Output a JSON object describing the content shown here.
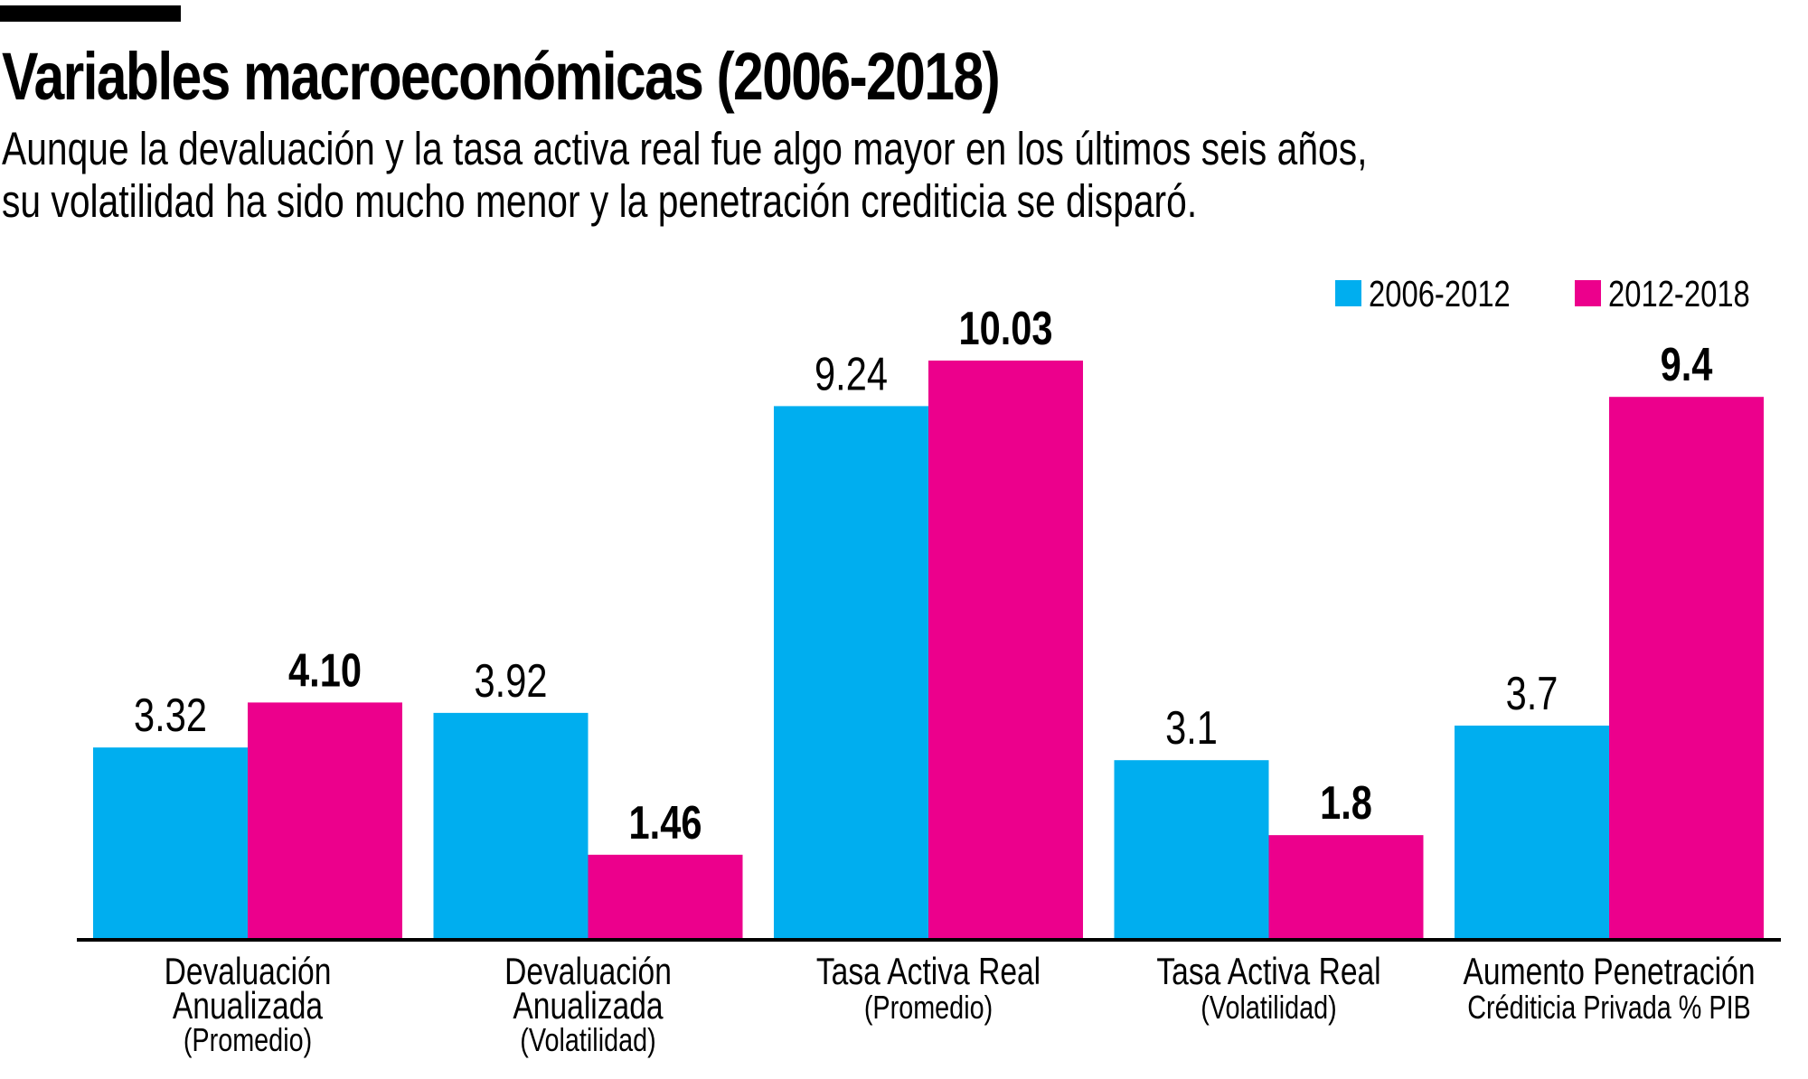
{
  "header": {
    "title": "Variables macroeconómicas (2006-2018)",
    "subtitle_lines": [
      "Aunque la devaluación y la tasa activa real fue algo mayor en los últimos seis años,",
      "su volatilidad ha sido mucho menor y la penetración crediticia se disparó."
    ]
  },
  "chart_data": {
    "type": "bar",
    "title": "Variables macroeconómicas (2006-2018)",
    "categories": [
      [
        "Devaluación",
        "Anualizada",
        "(Promedio)"
      ],
      [
        "Devaluación",
        "Anualizada",
        "(Volatilidad)"
      ],
      [
        "Tasa Activa Real",
        "(Promedio)"
      ],
      [
        "Tasa Activa Real",
        "(Volatilidad)"
      ],
      [
        "Aumento Penetración",
        "Créditicia Privada % PIB"
      ]
    ],
    "series": [
      {
        "name": "2006-2012",
        "color": "#00AEEF",
        "values": [
          3.32,
          3.92,
          9.24,
          3.1,
          3.7
        ],
        "labels": [
          "3.32",
          "3.92",
          "9.24",
          "3.1",
          "3.7"
        ],
        "label_bold": false
      },
      {
        "name": "2012-2018",
        "color": "#EC008C",
        "values": [
          4.1,
          1.46,
          10.03,
          1.8,
          9.4
        ],
        "labels": [
          "4.10",
          "1.46",
          "10.03",
          "1.8",
          "9.4"
        ],
        "label_bold": true
      }
    ],
    "xlabel": "",
    "ylabel": "",
    "ylim": [
      0,
      10.03
    ],
    "grid": false,
    "legend": "top-right"
  }
}
